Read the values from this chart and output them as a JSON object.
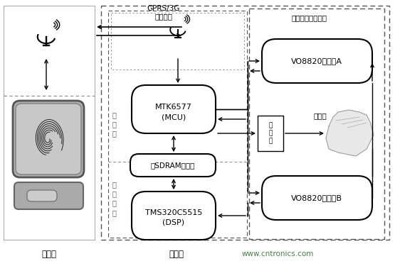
{
  "bg_color": "#ffffff",
  "fig_width": 5.55,
  "fig_height": 3.75,
  "dpi": 100,
  "server_label": "服务器",
  "client_label": "客户端",
  "watermark": "www.cntronics.com",
  "gprs_label1": "GPRS/3G",
  "gprs_label2": "无线传输",
  "optical_system_label": "指纹光学采集系统",
  "controller_label": "控\n制\n器",
  "fingerprint_label": "指\n纹\n算\n法",
  "mcu_label1": "MTK6577",
  "mcu_label2": "(MCU)",
  "sdram_label": "双SDRAM控制器",
  "dsp_label1": "TMS320C5515",
  "dsp_label2": "(DSP)",
  "camera_a_label": "VO8820摄像头A",
  "camera_b_label": "VO8820摄像头B",
  "projector_label": "光\n投\n影",
  "structure_light_label": "结构光",
  "text_color": "#000000",
  "gray_text": "#555555",
  "green_text": "#4a7c4a"
}
